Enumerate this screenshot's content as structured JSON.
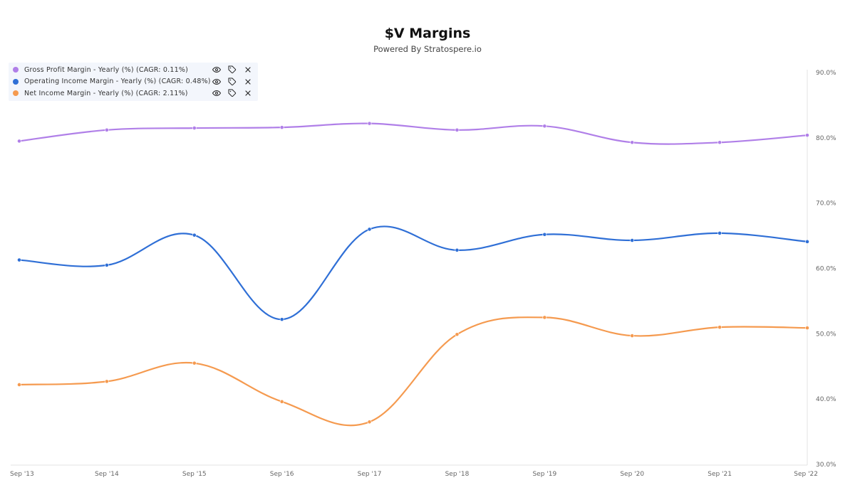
{
  "header": {
    "title": "$V Margins",
    "subtitle": "Powered By Stratospere.io"
  },
  "legend": {
    "items": [
      {
        "label": "Gross Profit Margin - Yearly (%) (CAGR: 0.11%)",
        "color": "#b07fe8"
      },
      {
        "label": "Operating Income Margin - Yearly (%) (CAGR: 0.48%)",
        "color": "#2f6fd6"
      },
      {
        "label": "Net Income Margin - Yearly (%) (CAGR: 2.11%)",
        "color": "#f59a4f"
      }
    ],
    "icons": [
      "eye-icon",
      "tag-icon",
      "close-icon"
    ]
  },
  "chart_data": {
    "type": "line",
    "title": "$V Margins",
    "subtitle": "Powered By Stratospere.io",
    "categories": [
      "Sep '13",
      "Sep '14",
      "Sep '15",
      "Sep '16",
      "Sep '17",
      "Sep '18",
      "Sep '19",
      "Sep '20",
      "Sep '21",
      "Sep '22"
    ],
    "y_ticks": [
      "30.0%",
      "40.0%",
      "50.0%",
      "60.0%",
      "70.0%",
      "80.0%",
      "90.0%"
    ],
    "ylim": [
      30,
      90
    ],
    "y_axis_position": "right",
    "grid": false,
    "legend_position": "top-left",
    "series": [
      {
        "name": "Gross Profit Margin - Yearly (%) (CAGR: 0.11%)",
        "color": "#b07fe8",
        "values": [
          79.5,
          81.2,
          81.5,
          81.6,
          82.2,
          81.2,
          81.8,
          79.3,
          79.3,
          80.4
        ]
      },
      {
        "name": "Operating Income Margin - Yearly (%) (CAGR: 0.48%)",
        "color": "#2f6fd6",
        "values": [
          61.3,
          60.5,
          65.1,
          52.2,
          66.0,
          62.8,
          65.2,
          64.3,
          65.4,
          64.1
        ]
      },
      {
        "name": "Net Income Margin - Yearly (%) (CAGR: 2.11%)",
        "color": "#f59a4f",
        "values": [
          42.2,
          42.7,
          45.5,
          39.6,
          36.5,
          49.9,
          52.5,
          49.7,
          51.0,
          50.9
        ]
      }
    ]
  }
}
